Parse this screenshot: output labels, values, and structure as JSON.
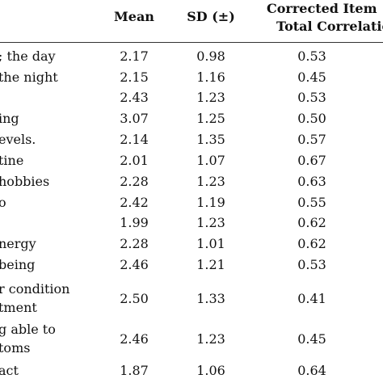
{
  "table": {
    "headers": {
      "mean": "Mean",
      "sd": "SD (±)",
      "cit_line1": "Corrected Item",
      "cit_line2": "Total Correlation"
    },
    "rows": [
      {
        "item": [
          "; the day"
        ],
        "mean": "2.17",
        "sd": "0.98",
        "cit": "0.53"
      },
      {
        "item": [
          " the night"
        ],
        "mean": "2.15",
        "sd": "1.16",
        "cit": "0.45"
      },
      {
        "item": [
          ""
        ],
        "mean": "2.43",
        "sd": "1.23",
        "cit": "0.53"
      },
      {
        "item": [
          "ing"
        ],
        "mean": "3.07",
        "sd": "1.25",
        "cit": "0.50"
      },
      {
        "item": [
          "evels."
        ],
        "mean": "2.14",
        "sd": "1.35",
        "cit": "0.57"
      },
      {
        "item": [
          "tine"
        ],
        "mean": "2.01",
        "sd": "1.07",
        "cit": "0.67"
      },
      {
        "item": [
          " hobbies"
        ],
        "mean": "2.28",
        "sd": "1.23",
        "cit": "0.63"
      },
      {
        "item": [
          "o"
        ],
        "mean": "2.42",
        "sd": "1.19",
        "cit": "0.55"
      },
      {
        "item": [
          ""
        ],
        "mean": "1.99",
        "sd": "1.23",
        "cit": "0.62"
      },
      {
        "item": [
          "nergy"
        ],
        "mean": "2.28",
        "sd": "1.01",
        "cit": "0.62"
      },
      {
        "item": [
          "being"
        ],
        "mean": "2.46",
        "sd": "1.21",
        "cit": "0.53"
      },
      {
        "item": [
          "r condition",
          "tment"
        ],
        "mean": "2.50",
        "sd": "1.33",
        "cit": "0.41"
      },
      {
        "item": [
          "g able to",
          "toms"
        ],
        "mean": "2.46",
        "sd": "1.23",
        "cit": "0.45"
      },
      {
        "item": [
          "act"
        ],
        "mean": "1.87",
        "sd": "1.06",
        "cit": "0.64"
      }
    ]
  }
}
